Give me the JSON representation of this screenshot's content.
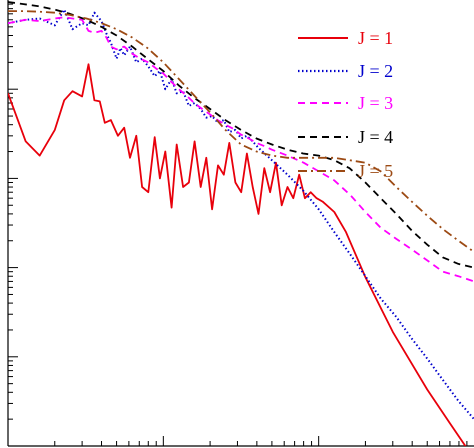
{
  "chart_data": {
    "type": "line",
    "title": "",
    "xlabel": "",
    "ylabel": "",
    "xscale": "log",
    "yscale": "log",
    "xlim": [
      1,
      1000
    ],
    "ylim": [
      1e-05,
      1
    ],
    "grid": false,
    "legend_position": "top-right",
    "series": [
      {
        "name": "J = 1",
        "color": "#e8000b",
        "dash": "solid",
        "x": [
          1,
          1.3,
          1.6,
          2.0,
          2.3,
          2.6,
          3.0,
          3.3,
          3.6,
          3.9,
          4.2,
          4.6,
          5.1,
          5.6,
          6.1,
          6.7,
          7.3,
          8.0,
          8.8,
          9.5,
          10.3,
          11.3,
          12.2,
          13.4,
          14.6,
          15.9,
          17.4,
          18.9,
          20.6,
          22.5,
          24.5,
          26.6,
          29.1,
          31.7,
          34.5,
          37.6,
          41,
          44.7,
          48.7,
          53.1,
          57.8,
          63,
          68.7,
          74.9,
          81.6,
          88.9,
          97,
          106,
          126,
          150,
          200,
          300,
          500,
          700,
          1000
        ],
        "y": [
          0.09,
          0.026,
          0.018,
          0.035,
          0.075,
          0.095,
          0.083,
          0.19,
          0.075,
          0.073,
          0.042,
          0.045,
          0.03,
          0.037,
          0.017,
          0.03,
          0.008,
          0.007,
          0.029,
          0.01,
          0.02,
          0.0047,
          0.024,
          0.008,
          0.009,
          0.026,
          0.008,
          0.017,
          0.0045,
          0.014,
          0.011,
          0.025,
          0.009,
          0.007,
          0.019,
          0.008,
          0.004,
          0.013,
          0.007,
          0.015,
          0.005,
          0.008,
          0.006,
          0.011,
          0.006,
          0.007,
          0.006,
          0.0055,
          0.0042,
          0.0025,
          0.00078,
          0.00019,
          4.3e-05,
          1.8e-05,
          7.2e-06
        ]
      },
      {
        "name": "J = 2",
        "color": "#0000cc",
        "dash": "dotted",
        "x": [
          1,
          1.3,
          1.6,
          2.0,
          2.3,
          2.6,
          3.0,
          3.3,
          3.6,
          4.0,
          4.3,
          4.6,
          5.0,
          5.3,
          5.6,
          6.1,
          6.7,
          7.3,
          8.0,
          8.8,
          9.5,
          10.3,
          11.3,
          12.2,
          13.4,
          14.6,
          15.9,
          17.4,
          18.9,
          20.6,
          22.5,
          24.5,
          26.6,
          29.1,
          31.7,
          34.5,
          37.6,
          41,
          50,
          63,
          80,
          100,
          126,
          160,
          200,
          251,
          316,
          398,
          501,
          631,
          794,
          1000
        ],
        "y": [
          0.55,
          0.6,
          0.62,
          0.52,
          0.78,
          0.47,
          0.55,
          0.52,
          0.72,
          0.58,
          0.42,
          0.33,
          0.22,
          0.29,
          0.24,
          0.3,
          0.2,
          0.22,
          0.18,
          0.14,
          0.16,
          0.1,
          0.13,
          0.09,
          0.095,
          0.065,
          0.07,
          0.06,
          0.048,
          0.05,
          0.042,
          0.045,
          0.033,
          0.035,
          0.028,
          0.03,
          0.026,
          0.022,
          0.016,
          0.011,
          0.0072,
          0.0045,
          0.0025,
          0.0014,
          0.0008,
          0.00045,
          0.00028,
          0.00016,
          9.5e-05,
          5.5e-05,
          3.2e-05,
          2e-05
        ]
      },
      {
        "name": "J = 3",
        "color": "#ff00ff",
        "dash": "dashed",
        "x": [
          1,
          1.3,
          1.6,
          2.0,
          2.3,
          2.6,
          3.0,
          3.3,
          3.6,
          4.0,
          4.3,
          4.6,
          5.0,
          5.6,
          6.3,
          7.1,
          8.0,
          9.0,
          10,
          11.3,
          12.6,
          14.1,
          15.8,
          17.8,
          20,
          22.4,
          25.1,
          28.2,
          31.6,
          35.5,
          39.8,
          44.7,
          50,
          63,
          80,
          100,
          126,
          160,
          200,
          251,
          316,
          398,
          501,
          631,
          794,
          1000
        ],
        "y": [
          0.55,
          0.6,
          0.58,
          0.62,
          0.64,
          0.62,
          0.6,
          0.45,
          0.43,
          0.45,
          0.38,
          0.3,
          0.28,
          0.3,
          0.25,
          0.22,
          0.2,
          0.17,
          0.15,
          0.12,
          0.1,
          0.085,
          0.07,
          0.06,
          0.052,
          0.045,
          0.04,
          0.036,
          0.031,
          0.028,
          0.025,
          0.023,
          0.021,
          0.018,
          0.015,
          0.012,
          0.0095,
          0.0065,
          0.0042,
          0.0028,
          0.0021,
          0.0016,
          0.0012,
          0.0009,
          0.0008,
          0.0007
        ]
      },
      {
        "name": "J = 4",
        "color": "#000000",
        "dash": "dashed",
        "x": [
          1,
          1.26,
          1.58,
          2.0,
          2.5,
          3.2,
          4.0,
          5.0,
          6.3,
          7.9,
          10,
          12.6,
          15.8,
          20,
          25.1,
          31.6,
          39.8,
          50.1,
          63.1,
          79.4,
          100,
          126,
          158,
          200,
          251,
          316,
          398,
          501,
          631,
          794,
          1000
        ],
        "y": [
          0.95,
          0.9,
          0.85,
          0.78,
          0.7,
          0.6,
          0.5,
          0.4,
          0.3,
          0.22,
          0.16,
          0.11,
          0.08,
          0.06,
          0.045,
          0.035,
          0.028,
          0.024,
          0.021,
          0.019,
          0.018,
          0.016,
          0.013,
          0.009,
          0.006,
          0.004,
          0.0026,
          0.0018,
          0.0013,
          0.0011,
          0.001
        ]
      },
      {
        "name": "J = 5",
        "color": "#9c4a14",
        "dash": "dashdot",
        "x": [
          1,
          1.26,
          1.58,
          2.0,
          2.5,
          3.2,
          4.0,
          5.0,
          6.3,
          7.9,
          10,
          12.6,
          15.8,
          20,
          25.1,
          31.6,
          39.8,
          50.1,
          63.1,
          79.4,
          100,
          126,
          158,
          200,
          251,
          316,
          398,
          501,
          631,
          794,
          1000
        ],
        "y": [
          0.75,
          0.75,
          0.74,
          0.72,
          0.68,
          0.62,
          0.55,
          0.47,
          0.38,
          0.29,
          0.2,
          0.13,
          0.085,
          0.055,
          0.035,
          0.024,
          0.02,
          0.018,
          0.017,
          0.017,
          0.017,
          0.017,
          0.016,
          0.015,
          0.012,
          0.008,
          0.0055,
          0.0038,
          0.0027,
          0.002,
          0.0015
        ]
      }
    ],
    "legend": [
      "J = 1",
      "J = 2",
      "J = 3",
      "J = 4",
      "J = 5"
    ]
  }
}
